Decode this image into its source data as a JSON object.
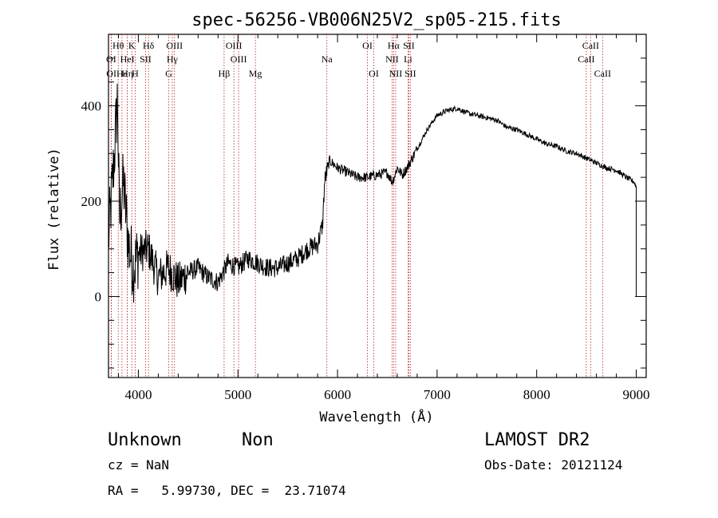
{
  "chart_data": {
    "type": "line",
    "title": "spec-56256-VB006N25V2_sp05-215.fits",
    "xlabel": "Wavelength (Å)",
    "ylabel": "Flux (relative)",
    "xlim": [
      3700,
      9100
    ],
    "ylim": [
      -170,
      550
    ],
    "x_ticks": [
      4000,
      5000,
      6000,
      7000,
      8000,
      9000
    ],
    "y_ticks": [
      0,
      200,
      400
    ],
    "grid": false,
    "line_color": "#000000",
    "marker_color": "#b22222",
    "spectral_lines": [
      {
        "label": "Hθ",
        "wavelength": 3798,
        "row": 1
      },
      {
        "label": "K",
        "wavelength": 3934,
        "row": 1
      },
      {
        "label": "Hδ",
        "wavelength": 4102,
        "row": 1
      },
      {
        "label": "OIII",
        "wavelength": 4363,
        "row": 1
      },
      {
        "label": "OIII",
        "wavelength": 4959,
        "row": 1
      },
      {
        "label": "OI",
        "wavelength": 6300,
        "row": 1
      },
      {
        "label": "Hα",
        "wavelength": 6563,
        "row": 1
      },
      {
        "label": "SII",
        "wavelength": 6716,
        "row": 1
      },
      {
        "label": "CaII",
        "wavelength": 8542,
        "row": 1
      },
      {
        "label": "OI",
        "wavelength": 3727,
        "row": 2
      },
      {
        "label": "HeI",
        "wavelength": 3889,
        "row": 2
      },
      {
        "label": "SII",
        "wavelength": 4072,
        "row": 2
      },
      {
        "label": "Hγ",
        "wavelength": 4340,
        "row": 2
      },
      {
        "label": "OIII",
        "wavelength": 5007,
        "row": 2
      },
      {
        "label": "Na",
        "wavelength": 5893,
        "row": 2
      },
      {
        "label": "NII",
        "wavelength": 6548,
        "row": 2
      },
      {
        "label": "Li",
        "wavelength": 6708,
        "row": 2
      },
      {
        "label": "CaII",
        "wavelength": 8498,
        "row": 2
      },
      {
        "label": "OI",
        "wavelength": 3729,
        "row": 3
      },
      {
        "label": "Hε",
        "wavelength": 3835,
        "row": 3
      },
      {
        "label": "Hη",
        "wavelength": 3889,
        "row": 3
      },
      {
        "label": "H",
        "wavelength": 3968,
        "row": 3
      },
      {
        "label": "G",
        "wavelength": 4305,
        "row": 3
      },
      {
        "label": "Hβ",
        "wavelength": 4861,
        "row": 3
      },
      {
        "label": "Mg",
        "wavelength": 5175,
        "row": 3
      },
      {
        "label": "OI",
        "wavelength": 6364,
        "row": 3
      },
      {
        "label": "NII",
        "wavelength": 6584,
        "row": 3
      },
      {
        "label": "SII",
        "wavelength": 6731,
        "row": 3
      },
      {
        "label": "CaII",
        "wavelength": 8662,
        "row": 3
      }
    ],
    "series": [
      {
        "x": [
          3700,
          3730,
          3760,
          3790,
          3810,
          3850,
          3900,
          3950,
          4000,
          4100,
          4200,
          4300,
          4400,
          4500,
          4600,
          4700,
          4800,
          4900,
          5000,
          5100,
          5200,
          5300,
          5400,
          5500,
          5600,
          5700,
          5800,
          5850,
          5870,
          5890,
          5920,
          6000,
          6100,
          6200,
          6300,
          6400,
          6500,
          6550,
          6600,
          6650,
          6700,
          6750,
          6800,
          6900,
          7000,
          7100,
          7200,
          7300,
          7400,
          7500,
          7600,
          7700,
          7800,
          7900,
          8000,
          8100,
          8200,
          8300,
          8400,
          8500,
          8600,
          8700,
          8800,
          8900,
          8980,
          9000,
          9010
        ],
        "y": [
          120,
          210,
          300,
          420,
          160,
          240,
          110,
          60,
          90,
          100,
          40,
          60,
          30,
          50,
          60,
          40,
          30,
          70,
          60,
          80,
          70,
          60,
          60,
          70,
          80,
          100,
          110,
          150,
          240,
          260,
          285,
          270,
          260,
          250,
          250,
          255,
          260,
          240,
          270,
          255,
          270,
          290,
          310,
          350,
          380,
          390,
          395,
          385,
          380,
          375,
          370,
          355,
          350,
          340,
          330,
          320,
          315,
          305,
          300,
          290,
          280,
          270,
          265,
          250,
          240,
          230,
          0
        ]
      }
    ]
  },
  "footer": {
    "object": "Unknown",
    "subclass": "Non",
    "survey": "LAMOST DR2",
    "cz": "cz = NaN",
    "obs_date": "Obs-Date: 20121124",
    "coords": "RA =   5.99730, DEC =  23.71074"
  }
}
